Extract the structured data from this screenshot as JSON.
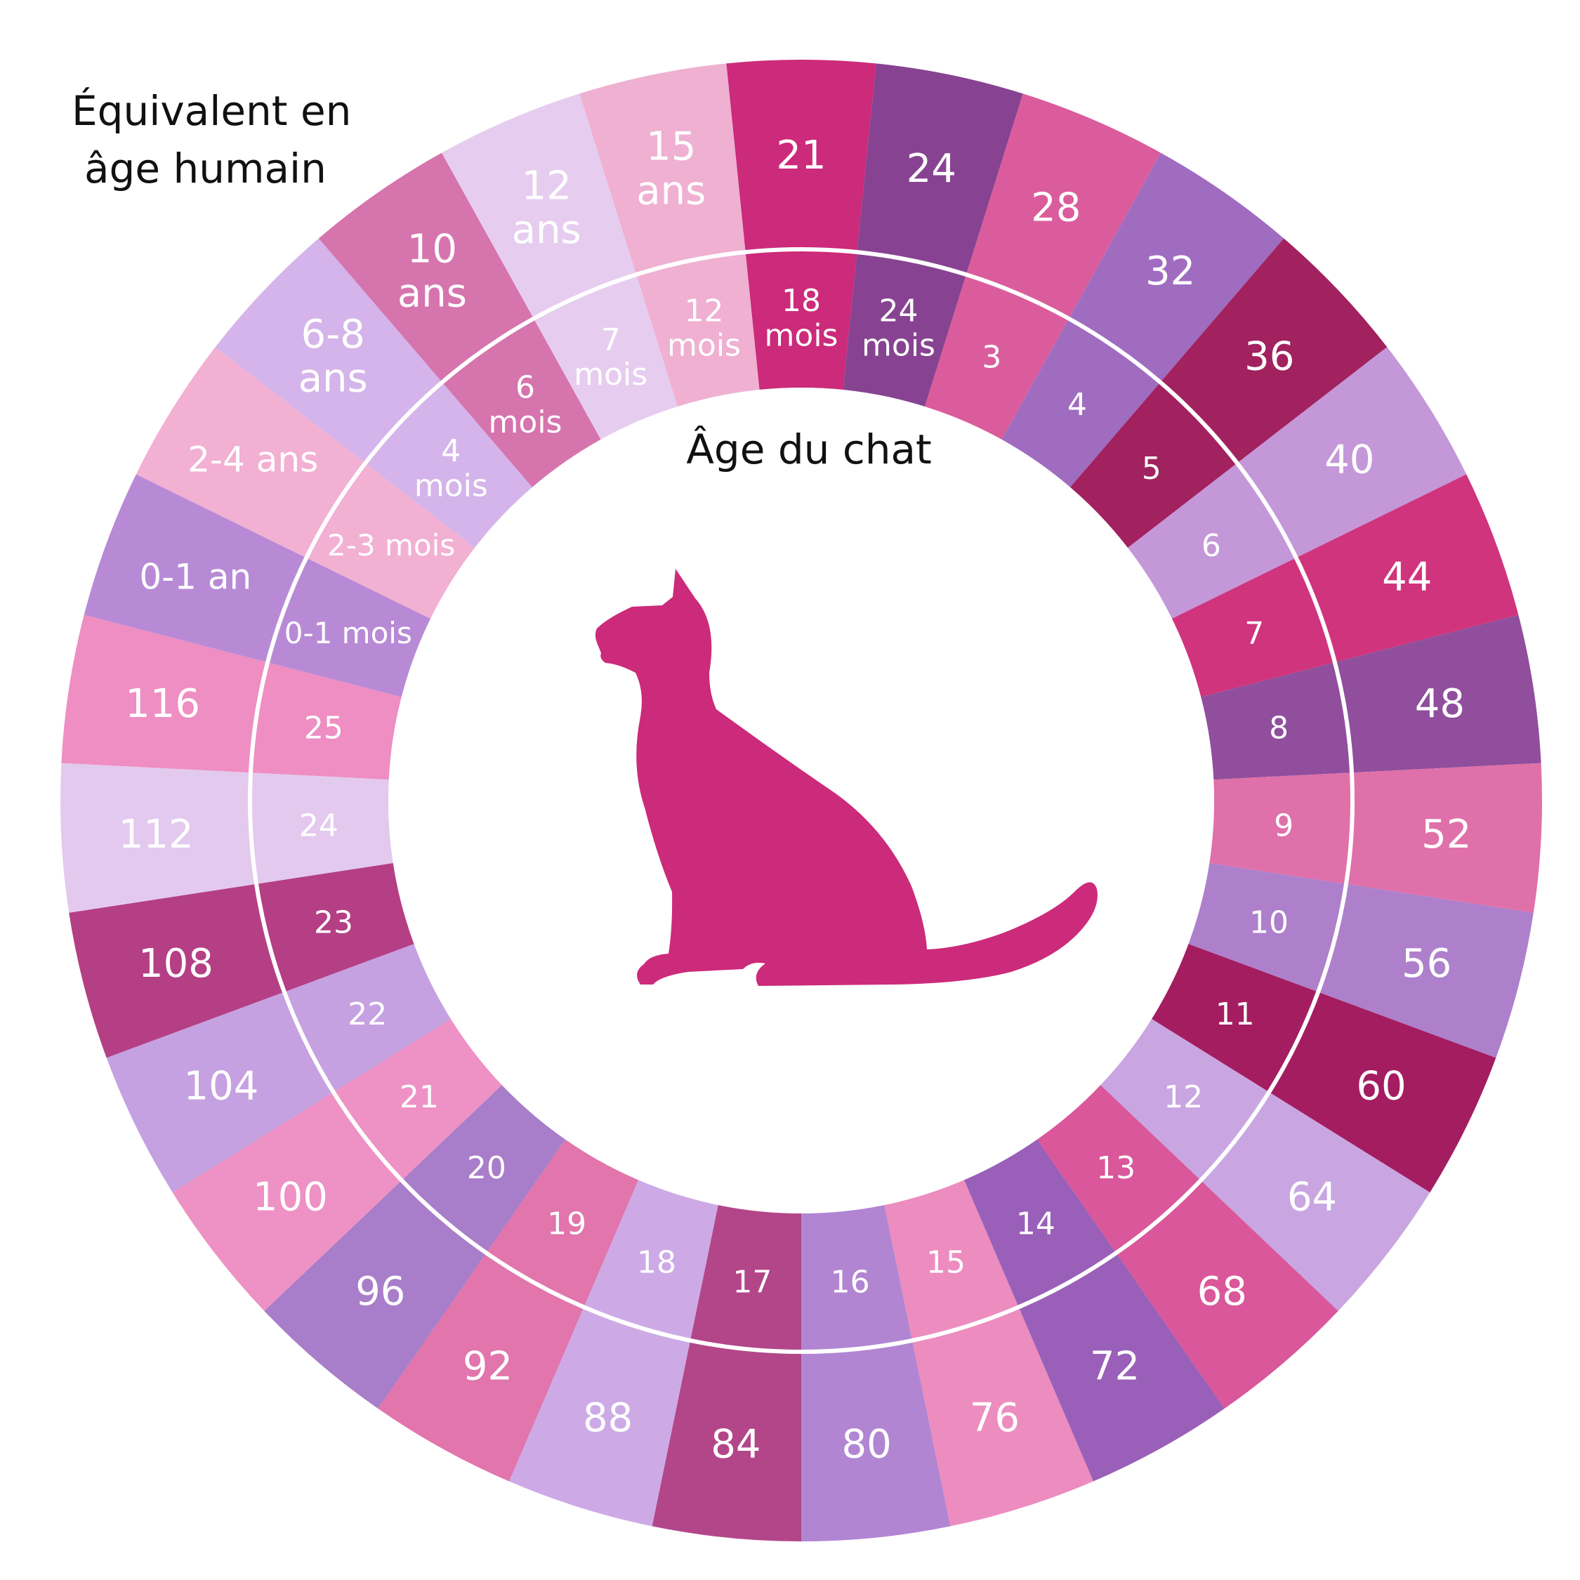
{
  "legend": {
    "outer_label_line1": "Équivalent en",
    "outer_label_line2": "âge humain",
    "inner_label": "Âge du chat"
  },
  "center_icon": "cat-silhouette-icon",
  "colors": {
    "icon": "#cc2a7a",
    "divider": "#ffffff"
  },
  "chart_data": {
    "type": "table",
    "rows": [
      {
        "cat_age": [
          "18",
          "mois"
        ],
        "human_age": [
          "21"
        ],
        "color": "#cc2a7a"
      },
      {
        "cat_age": [
          "24",
          "mois"
        ],
        "human_age": [
          "24"
        ],
        "color": "#874391"
      },
      {
        "cat_age": [
          "3"
        ],
        "human_age": [
          "28"
        ],
        "color": "#db5c9c"
      },
      {
        "cat_age": [
          "4"
        ],
        "human_age": [
          "32"
        ],
        "color": "#a06cc0"
      },
      {
        "cat_age": [
          "5"
        ],
        "human_age": [
          "36"
        ],
        "color": "#a2215f"
      },
      {
        "cat_age": [
          "6"
        ],
        "human_age": [
          "40"
        ],
        "color": "#c497d8"
      },
      {
        "cat_age": [
          "7"
        ],
        "human_age": [
          "44"
        ],
        "color": "#cf347d"
      },
      {
        "cat_age": [
          "8"
        ],
        "human_age": [
          "48"
        ],
        "color": "#904e9c"
      },
      {
        "cat_age": [
          "9"
        ],
        "human_age": [
          "52"
        ],
        "color": "#e070a9"
      },
      {
        "cat_age": [
          "10"
        ],
        "human_age": [
          "56"
        ],
        "color": "#ae80cb"
      },
      {
        "cat_age": [
          "11"
        ],
        "human_age": [
          "60"
        ],
        "color": "#a41d61"
      },
      {
        "cat_age": [
          "12"
        ],
        "human_age": [
          "64"
        ],
        "color": "#c9a6e1"
      },
      {
        "cat_age": [
          "13"
        ],
        "human_age": [
          "68"
        ],
        "color": "#d9579a"
      },
      {
        "cat_age": [
          "14"
        ],
        "human_age": [
          "72"
        ],
        "color": "#9a5fb8"
      },
      {
        "cat_age": [
          "15"
        ],
        "human_age": [
          "76"
        ],
        "color": "#ec8cbf"
      },
      {
        "cat_age": [
          "16"
        ],
        "human_age": [
          "80"
        ],
        "color": "#b285d3"
      },
      {
        "cat_age": [
          "17"
        ],
        "human_age": [
          "84"
        ],
        "color": "#b24689"
      },
      {
        "cat_age": [
          "18"
        ],
        "human_age": [
          "88"
        ],
        "color": "#cdaae6"
      },
      {
        "cat_age": [
          "19"
        ],
        "human_age": [
          "92"
        ],
        "color": "#e175ac"
      },
      {
        "cat_age": [
          "20"
        ],
        "human_age": [
          "96"
        ],
        "color": "#a87dc9"
      },
      {
        "cat_age": [
          "21"
        ],
        "human_age": [
          "100"
        ],
        "color": "#ee91c4"
      },
      {
        "cat_age": [
          "22"
        ],
        "human_age": [
          "104"
        ],
        "color": "#c6a1e1"
      },
      {
        "cat_age": [
          "23"
        ],
        "human_age": [
          "108"
        ],
        "color": "#b43f85"
      },
      {
        "cat_age": [
          "24"
        ],
        "human_age": [
          "112"
        ],
        "color": "#e3c9ee"
      },
      {
        "cat_age": [
          "25"
        ],
        "human_age": [
          "116"
        ],
        "color": "#ee8ec2"
      },
      {
        "cat_age": [
          "0-1 mois"
        ],
        "human_age": [
          "0-1 an"
        ],
        "color": "#b88ad6"
      },
      {
        "cat_age": [
          "2-3 mois"
        ],
        "human_age": [
          "2-4 ans"
        ],
        "color": "#f2b0d3"
      },
      {
        "cat_age": [
          "4",
          "mois"
        ],
        "human_age": [
          "6-8",
          "ans"
        ],
        "color": "#d4b4ea"
      },
      {
        "cat_age": [
          "6",
          "mois"
        ],
        "human_age": [
          "10",
          "ans"
        ],
        "color": "#d674ad"
      },
      {
        "cat_age": [
          "7",
          "mois"
        ],
        "human_age": [
          "12",
          "ans"
        ],
        "color": "#e6cdef"
      },
      {
        "cat_age": [
          "12",
          "mois"
        ],
        "human_age": [
          "15",
          "ans"
        ],
        "color": "#efb0d2"
      }
    ]
  }
}
